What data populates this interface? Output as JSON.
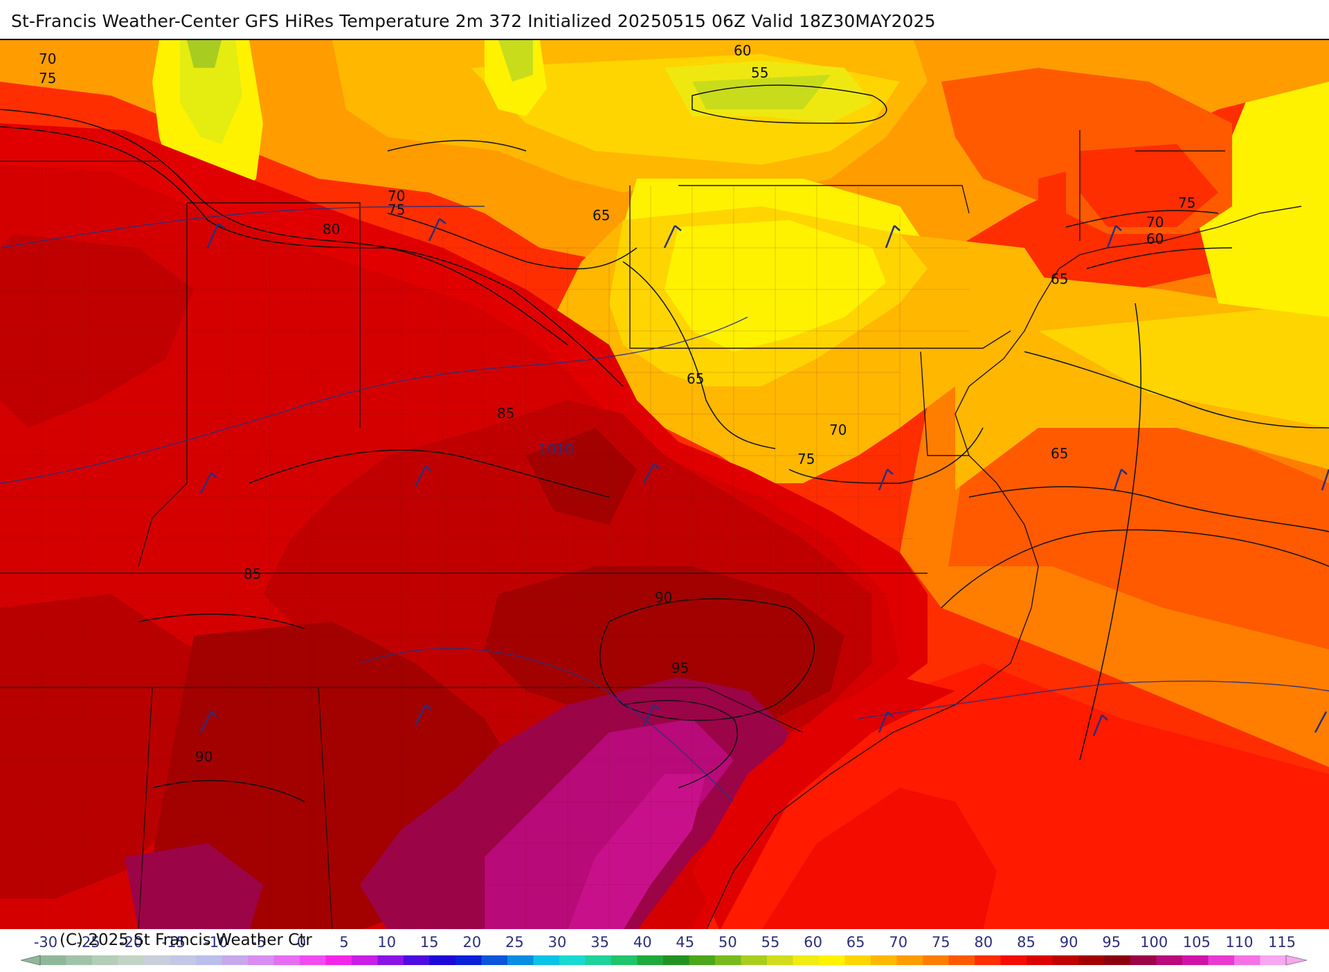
{
  "title": "St-Francis Weather-Center GFS HiRes Temperature 2m  372 Initialized 20250515 06Z Valid 18Z30MAY2025",
  "credit": "(C) 2025 St Francis Weather Ctr",
  "colorbar": {
    "tick_labels": [
      "-30",
      "-25",
      "-20",
      "-15",
      "-10",
      "-5",
      "0",
      "5",
      "10",
      "15",
      "20",
      "25",
      "30",
      "35",
      "40",
      "45",
      "50",
      "55",
      "60",
      "65",
      "70",
      "75",
      "80",
      "85",
      "90",
      "95",
      "100",
      "105",
      "110",
      "115"
    ],
    "colors": [
      "#8fb89a",
      "#a2c2a8",
      "#b3cdb6",
      "#c2d4c4",
      "#c8cfda",
      "#c2c8e4",
      "#b9bfea",
      "#c7a8ec",
      "#d78ef0",
      "#e56ef2",
      "#f04bf0",
      "#f326e8",
      "#c81ee6",
      "#8a14e4",
      "#4d0ce0",
      "#1c08d8",
      "#0a20d6",
      "#0a56da",
      "#0a8ce0",
      "#0ac2e6",
      "#18d9d2",
      "#1fd19a",
      "#20c46a",
      "#1eaa3a",
      "#229222",
      "#4aa61a",
      "#78ba1c",
      "#a8cc20",
      "#d2dc1c",
      "#f0ec14",
      "#fff200",
      "#ffd500",
      "#ffb700",
      "#ff9c00",
      "#ff7e00",
      "#ff5a00",
      "#ff2e00",
      "#f40c00",
      "#dd0000",
      "#c00000",
      "#a30000",
      "#8a0010",
      "#9c0448",
      "#b80a78",
      "#d014a8",
      "#e83ad0",
      "#f472e6",
      "#f8a6f0"
    ]
  },
  "map": {
    "temperature_contours": [
      {
        "label": "70",
        "at": "Lake Michigan, NW"
      },
      {
        "label": "75",
        "at": "Wisconsin"
      },
      {
        "label": "60",
        "at": "Ontario"
      },
      {
        "label": "55",
        "at": "Ontario"
      },
      {
        "label": "70",
        "at": "Lake Erie"
      },
      {
        "label": "75",
        "at": "Ohio north"
      },
      {
        "label": "80",
        "at": "Indiana"
      },
      {
        "label": "65",
        "at": "Western Pennsylvania"
      },
      {
        "label": "75",
        "at": "Massachusetts"
      },
      {
        "label": "70",
        "at": "Long Island Sound"
      },
      {
        "label": "60",
        "at": "Long Island Sound"
      },
      {
        "label": "65",
        "at": "New Jersey"
      },
      {
        "label": "65",
        "at": "West Virginia"
      },
      {
        "label": "85",
        "at": "Kentucky"
      },
      {
        "label": "70",
        "at": "Virginia north"
      },
      {
        "label": "75",
        "at": "Virginia"
      },
      {
        "label": "65",
        "at": "Atlantic"
      },
      {
        "label": "85",
        "at": "Tennessee"
      },
      {
        "label": "90",
        "at": "North Carolina"
      },
      {
        "label": "95",
        "at": "South Carolina"
      },
      {
        "label": "90",
        "at": "Alabama"
      }
    ],
    "isobar_labels": [
      "1010"
    ],
    "colors": {
      "hot_magenta": "#c8108a",
      "very_hot": "#8a0010",
      "hot": "#c00000",
      "warm_red": "#e00000",
      "red_orange": "#ff2e00",
      "orange": "#ff7e00",
      "light_orange": "#ffb700",
      "yellow": "#fff200",
      "green_yellow": "#d2dc1c",
      "contour_line": "#111111",
      "isobar_line": "#2b2f7a",
      "boundary_line": "#2a1010"
    }
  }
}
